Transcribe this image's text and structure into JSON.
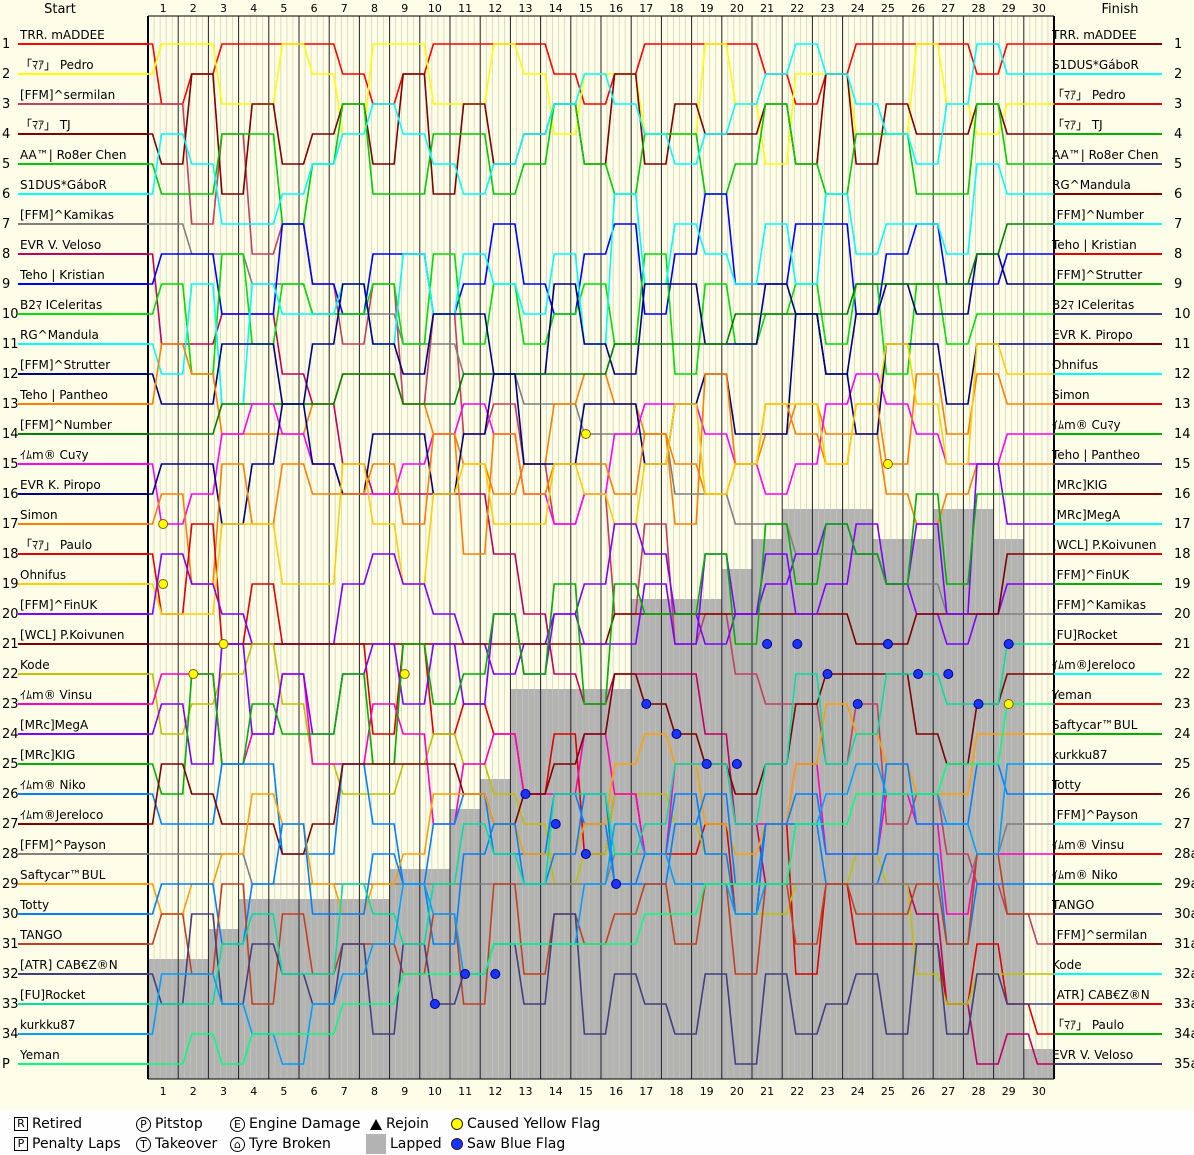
{
  "chart_data": {
    "type": "line",
    "title": "",
    "header": {
      "start": "Start",
      "finish": "Finish"
    },
    "laps": [
      "1",
      "2",
      "3",
      "4",
      "5",
      "6",
      "7",
      "8",
      "9",
      "10",
      "11",
      "12",
      "13",
      "14",
      "15",
      "16",
      "17",
      "18",
      "19",
      "20",
      "21",
      "22",
      "23",
      "24",
      "25",
      "26",
      "27",
      "28",
      "29",
      "30"
    ],
    "start_positions": [
      "1",
      "2",
      "3",
      "4",
      "5",
      "6",
      "7",
      "8",
      "9",
      "10",
      "11",
      "12",
      "13",
      "14",
      "15",
      "16",
      "17",
      "18",
      "19",
      "20",
      "21",
      "22",
      "23",
      "24",
      "25",
      "26",
      "27",
      "28",
      "29",
      "30",
      "31",
      "32",
      "33",
      "34",
      "P"
    ],
    "start_drivers": [
      "TRR. mADDEE",
      "「ﾏｱ」 Pedro",
      "[FFM]^sermilan",
      "「ﾏｱ」 TJ",
      "AA™| Ro8er Chen",
      "S1DUS*GáboR",
      "[FFM]^Kamikas",
      "EVR V. Veloso",
      "Teho | Kristian",
      "B2ﾏ ICeleritas",
      "RG^Mandula",
      "[FFM]^Strutter",
      "Teho | Pantheo",
      "[FFM]^Number",
      "ｲﾑm® Cuﾏy",
      "EVR K. Piropo",
      "Simon",
      "「ﾏｱ」 Paulo",
      "Ohnifus",
      "[FFM]^FinUK",
      "[WCL] P.Koivunen",
      "Kode",
      "ｲﾑm® Vinsu",
      "[MRc]MegA",
      "[MRc]KIG",
      "ｲﾑm® Niko",
      "ｲﾑm®Jereloco",
      "[FFM]^Payson",
      "Saftycar™BUL",
      "Totty",
      "TANGO",
      "[ATR] CAB€Z®N",
      "[FU]Rocket",
      "kurkku87",
      "Yeman"
    ],
    "finish_positions": [
      "1",
      "2",
      "3",
      "4",
      "5",
      "6",
      "7",
      "8",
      "9",
      "10",
      "11",
      "12",
      "13",
      "14",
      "15",
      "16",
      "17",
      "18",
      "19",
      "20",
      "21",
      "22",
      "23",
      "24",
      "25",
      "26",
      "27",
      "28a",
      "29a",
      "30a",
      "31a",
      "32a",
      "33a",
      "34a",
      "35a"
    ],
    "finish_drivers": [
      "TRR. mADDEE",
      "S1DUS*GáboR",
      "「ﾏｱ」 Pedro",
      "「ﾏｱ」 TJ",
      "AA™| Ro8er Chen",
      "RG^Mandula",
      "[FFM]^Number",
      "Teho | Kristian",
      "[FFM]^Strutter",
      "B2ﾏ ICeleritas",
      "EVR K. Piropo",
      "Ohnifus",
      "Simon",
      "ｲﾑm® Cuﾏy",
      "Teho | Pantheo",
      "[MRc]KIG",
      "[MRc]MegA",
      "[WCL] P.Koivunen",
      "[FFM]^FinUK",
      "[FFM]^Kamikas",
      "[FU]Rocket",
      "ｲﾑm®Jereloco",
      "Yeman",
      "Saftycar™BUL",
      "kurkku87",
      "Totty",
      "[FFM]^Payson",
      "ｲﾑm® Vinsu",
      "ｲﾑm® Niko",
      "TANGO",
      "[FFM]^sermilan",
      "Kode",
      "[ATR] CAB€Z®N",
      "「ﾏｱ」 Paulo",
      "EVR V. Veloso"
    ],
    "colors": [
      "#ff0000",
      "#ffff00",
      "#c04060",
      "#800000",
      "#00cc00",
      "#00ffff",
      "#808080",
      "#c00060",
      "#0000ff",
      "#00e000",
      "#00ffff",
      "#000080",
      "#ff8000",
      "#008000",
      "#ff00ff",
      "#000080",
      "#ff8000",
      "#e00000",
      "#ffd000",
      "#8000ff",
      "#800000",
      "#c0c000",
      "#ff00c0",
      "#8000ff",
      "#00b000",
      "#0080ff",
      "#800000",
      "#808080",
      "#ffa000",
      "#0080ff",
      "#c04020",
      "#404080",
      "#00e0a0",
      "#00a0ff",
      "#00ff80"
    ],
    "grid": true,
    "lapped_region_note": "gray area marks lapped cars",
    "legend": [
      {
        "glyph": "R",
        "label": "Retired"
      },
      {
        "glyph": "P",
        "label": "Penalty Laps"
      },
      {
        "glyph": "P",
        "label": "Pitstop"
      },
      {
        "glyph": "T",
        "label": "Takeover"
      },
      {
        "glyph": "E",
        "label": "Engine Damage"
      },
      {
        "glyph": "",
        "label": "Tyre Broken"
      },
      {
        "glyph": "",
        "label": "Rejoin"
      },
      {
        "glyph": "",
        "label": "Lapped"
      },
      {
        "glyph": "",
        "label": "Caused Yellow Flag"
      },
      {
        "glyph": "",
        "label": "Saw Blue Flag"
      }
    ]
  }
}
